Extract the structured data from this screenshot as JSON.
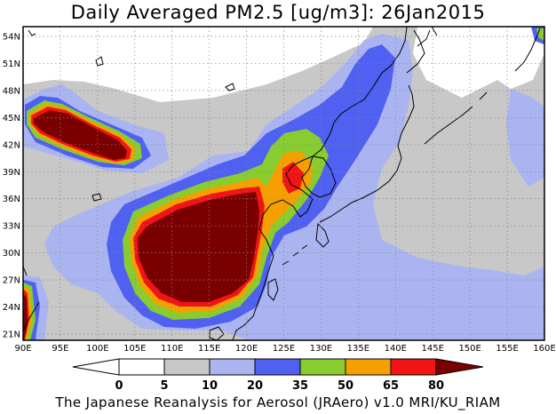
{
  "title": "Daily Averaged PM2.5 [ug/m3]: 26Jan2015",
  "footer": "The Japanese Reanalysis for Aerosol (JRAero) v1.0 MRI/KU_RIAM",
  "map": {
    "lon_labels": [
      "90E",
      "95E",
      "100E",
      "105E",
      "110E",
      "115E",
      "120E",
      "125E",
      "130E",
      "135E",
      "140E",
      "145E",
      "150E",
      "155E",
      "160E"
    ],
    "lat_labels": [
      "54N",
      "51N",
      "48N",
      "45N",
      "42N",
      "39N",
      "36N",
      "33N",
      "30N",
      "27N",
      "24N",
      "21N"
    ]
  },
  "colorbar": {
    "labels": [
      "0",
      "5",
      "10",
      "20",
      "35",
      "50",
      "65",
      "80"
    ],
    "colors": {
      "lt0": "#ffffff",
      "c0_5": "#ffffff",
      "c5_10": "#c8c8c8",
      "c10_20": "#aab4f0",
      "c20_35": "#5060f0",
      "c35_50": "#88cc30",
      "c50_65": "#f5a000",
      "c65_80": "#f01414",
      "gt80": "#7a0000"
    }
  }
}
